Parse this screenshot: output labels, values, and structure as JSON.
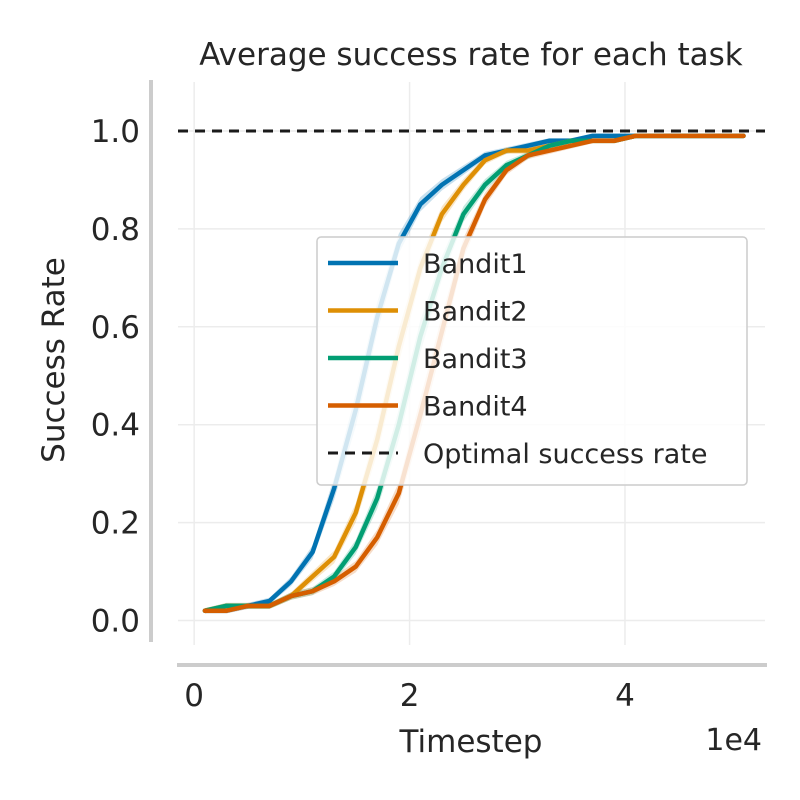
{
  "chart_data": {
    "type": "line",
    "title": "Average success rate for each task",
    "xlabel": "Timestep",
    "ylabel": "Success Rate",
    "x_offset_label": "1e4",
    "xlim": [
      -0.15,
      5.3
    ],
    "ylim": [
      -0.05,
      1.1
    ],
    "x_ticks": [
      0,
      2,
      4
    ],
    "x_tick_labels": [
      "0",
      "2",
      "4"
    ],
    "y_ticks": [
      0.0,
      0.2,
      0.4,
      0.6,
      0.8,
      1.0
    ],
    "y_tick_labels": [
      "0.0",
      "0.2",
      "0.4",
      "0.6",
      "0.8",
      "1.0"
    ],
    "grid": true,
    "legend_position": "center-right",
    "optimal": {
      "name": "Optimal success rate",
      "value": 1.0,
      "color": "#1a1a1a"
    },
    "x": [
      0.1,
      0.3,
      0.5,
      0.7,
      0.9,
      1.1,
      1.3,
      1.5,
      1.7,
      1.9,
      2.1,
      2.3,
      2.5,
      2.7,
      2.9,
      3.1,
      3.3,
      3.5,
      3.7,
      3.9,
      4.1,
      4.3,
      4.5,
      4.7,
      4.9,
      5.1
    ],
    "series": [
      {
        "name": "Bandit1",
        "color": "#0173b2",
        "values": [
          0.02,
          0.02,
          0.03,
          0.04,
          0.08,
          0.14,
          0.27,
          0.43,
          0.62,
          0.77,
          0.85,
          0.89,
          0.92,
          0.95,
          0.96,
          0.97,
          0.98,
          0.98,
          0.99,
          0.99,
          0.99,
          0.99,
          0.99,
          0.99,
          0.99,
          0.99
        ]
      },
      {
        "name": "Bandit2",
        "color": "#de8f05",
        "values": [
          0.02,
          0.03,
          0.03,
          0.03,
          0.05,
          0.09,
          0.13,
          0.22,
          0.37,
          0.56,
          0.72,
          0.83,
          0.89,
          0.94,
          0.96,
          0.96,
          0.97,
          0.98,
          0.98,
          0.98,
          0.99,
          0.99,
          0.99,
          0.99,
          0.99,
          0.99
        ]
      },
      {
        "name": "Bandit3",
        "color": "#029e73",
        "values": [
          0.02,
          0.03,
          0.03,
          0.03,
          0.05,
          0.06,
          0.09,
          0.15,
          0.25,
          0.4,
          0.58,
          0.72,
          0.83,
          0.89,
          0.93,
          0.95,
          0.97,
          0.98,
          0.98,
          0.98,
          0.99,
          0.99,
          0.99,
          0.99,
          0.99,
          0.99
        ]
      },
      {
        "name": "Bandit4",
        "color": "#d55e00",
        "values": [
          0.02,
          0.02,
          0.03,
          0.03,
          0.05,
          0.06,
          0.08,
          0.11,
          0.17,
          0.26,
          0.42,
          0.59,
          0.76,
          0.86,
          0.92,
          0.95,
          0.96,
          0.97,
          0.98,
          0.98,
          0.99,
          0.99,
          0.99,
          0.99,
          0.99,
          0.99
        ]
      }
    ]
  }
}
